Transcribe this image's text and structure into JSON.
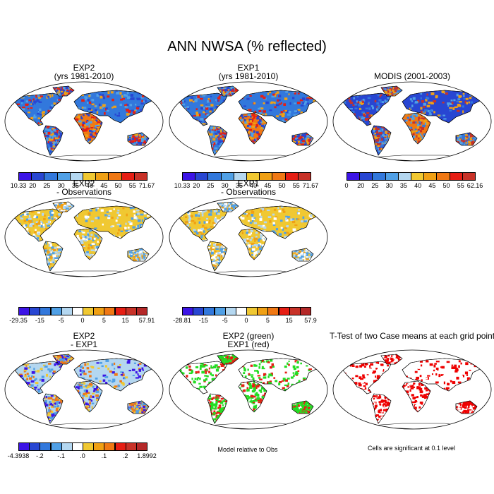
{
  "title": "ANN NWSA (% reflected)",
  "panels": [
    {
      "id": "exp2",
      "title1": "EXP2",
      "title2": "(yrs 1981-2010)",
      "style": "mean"
    },
    {
      "id": "exp1",
      "title1": "EXP1",
      "title2": "(yrs 1981-2010)",
      "style": "mean"
    },
    {
      "id": "modis",
      "title1": "MODIS (2001-2003)",
      "title2": "",
      "style": "obs"
    },
    {
      "id": "exp2obs",
      "title1": "EXP2",
      "title2": "- Observations",
      "style": "bias"
    },
    {
      "id": "exp1obs",
      "title1": "EXP1",
      "title2": "- Observations",
      "style": "bias"
    },
    {
      "id": "exp2exp1",
      "title1": "EXP2",
      "title2": "- EXP1",
      "style": "diff"
    },
    {
      "id": "greenred",
      "title1": "EXP2 (green)",
      "title2": "EXP1 (red)",
      "style": "greenred"
    },
    {
      "id": "ttest",
      "title1": "T-Test of two Case means at each grid point",
      "title2": "",
      "style": "ttest"
    }
  ],
  "colorbars": [
    {
      "id": "cb1",
      "labels": [
        "10.33",
        "20",
        "25",
        "30",
        "35",
        "40",
        "45",
        "50",
        "55",
        "71.67"
      ]
    },
    {
      "id": "cb2",
      "labels": [
        "10.33",
        "20",
        "25",
        "30",
        "35",
        "40",
        "45",
        "50",
        "55",
        "71.67"
      ]
    },
    {
      "id": "cb3",
      "labels": [
        "0",
        "20",
        "25",
        "30",
        "35",
        "40",
        "45",
        "50",
        "55",
        "62.16"
      ]
    },
    {
      "id": "cb4",
      "labels": [
        "-29.35",
        "-15",
        "-5",
        "0",
        "5",
        "15",
        "57.91"
      ]
    },
    {
      "id": "cb5",
      "labels": [
        "-28.81",
        "-15",
        "-5",
        "0",
        "5",
        "15",
        "57.9"
      ]
    },
    {
      "id": "cb6",
      "labels": [
        "-4.3938",
        "-.2",
        "-.1",
        ".0",
        ".1",
        ".2",
        "1.8992"
      ]
    }
  ],
  "colors": {
    "mean": [
      "#3c14e6",
      "#2846d2",
      "#3278dc",
      "#50a0e6",
      "#b4d7f0",
      "#f0c832",
      "#f0a014",
      "#f07814",
      "#e61e14",
      "#c83228"
    ],
    "diff": [
      "#3c14e6",
      "#2846d2",
      "#3278dc",
      "#50a0e6",
      "#b4d7f0",
      "#ffffff",
      "#f0c832",
      "#f0a014",
      "#f07814",
      "#e61e14",
      "#c83228",
      "#b42828"
    ]
  },
  "notes": {
    "model_relative": "Model relative to Obs",
    "significant": "Cells are significant at 0.1 level"
  }
}
